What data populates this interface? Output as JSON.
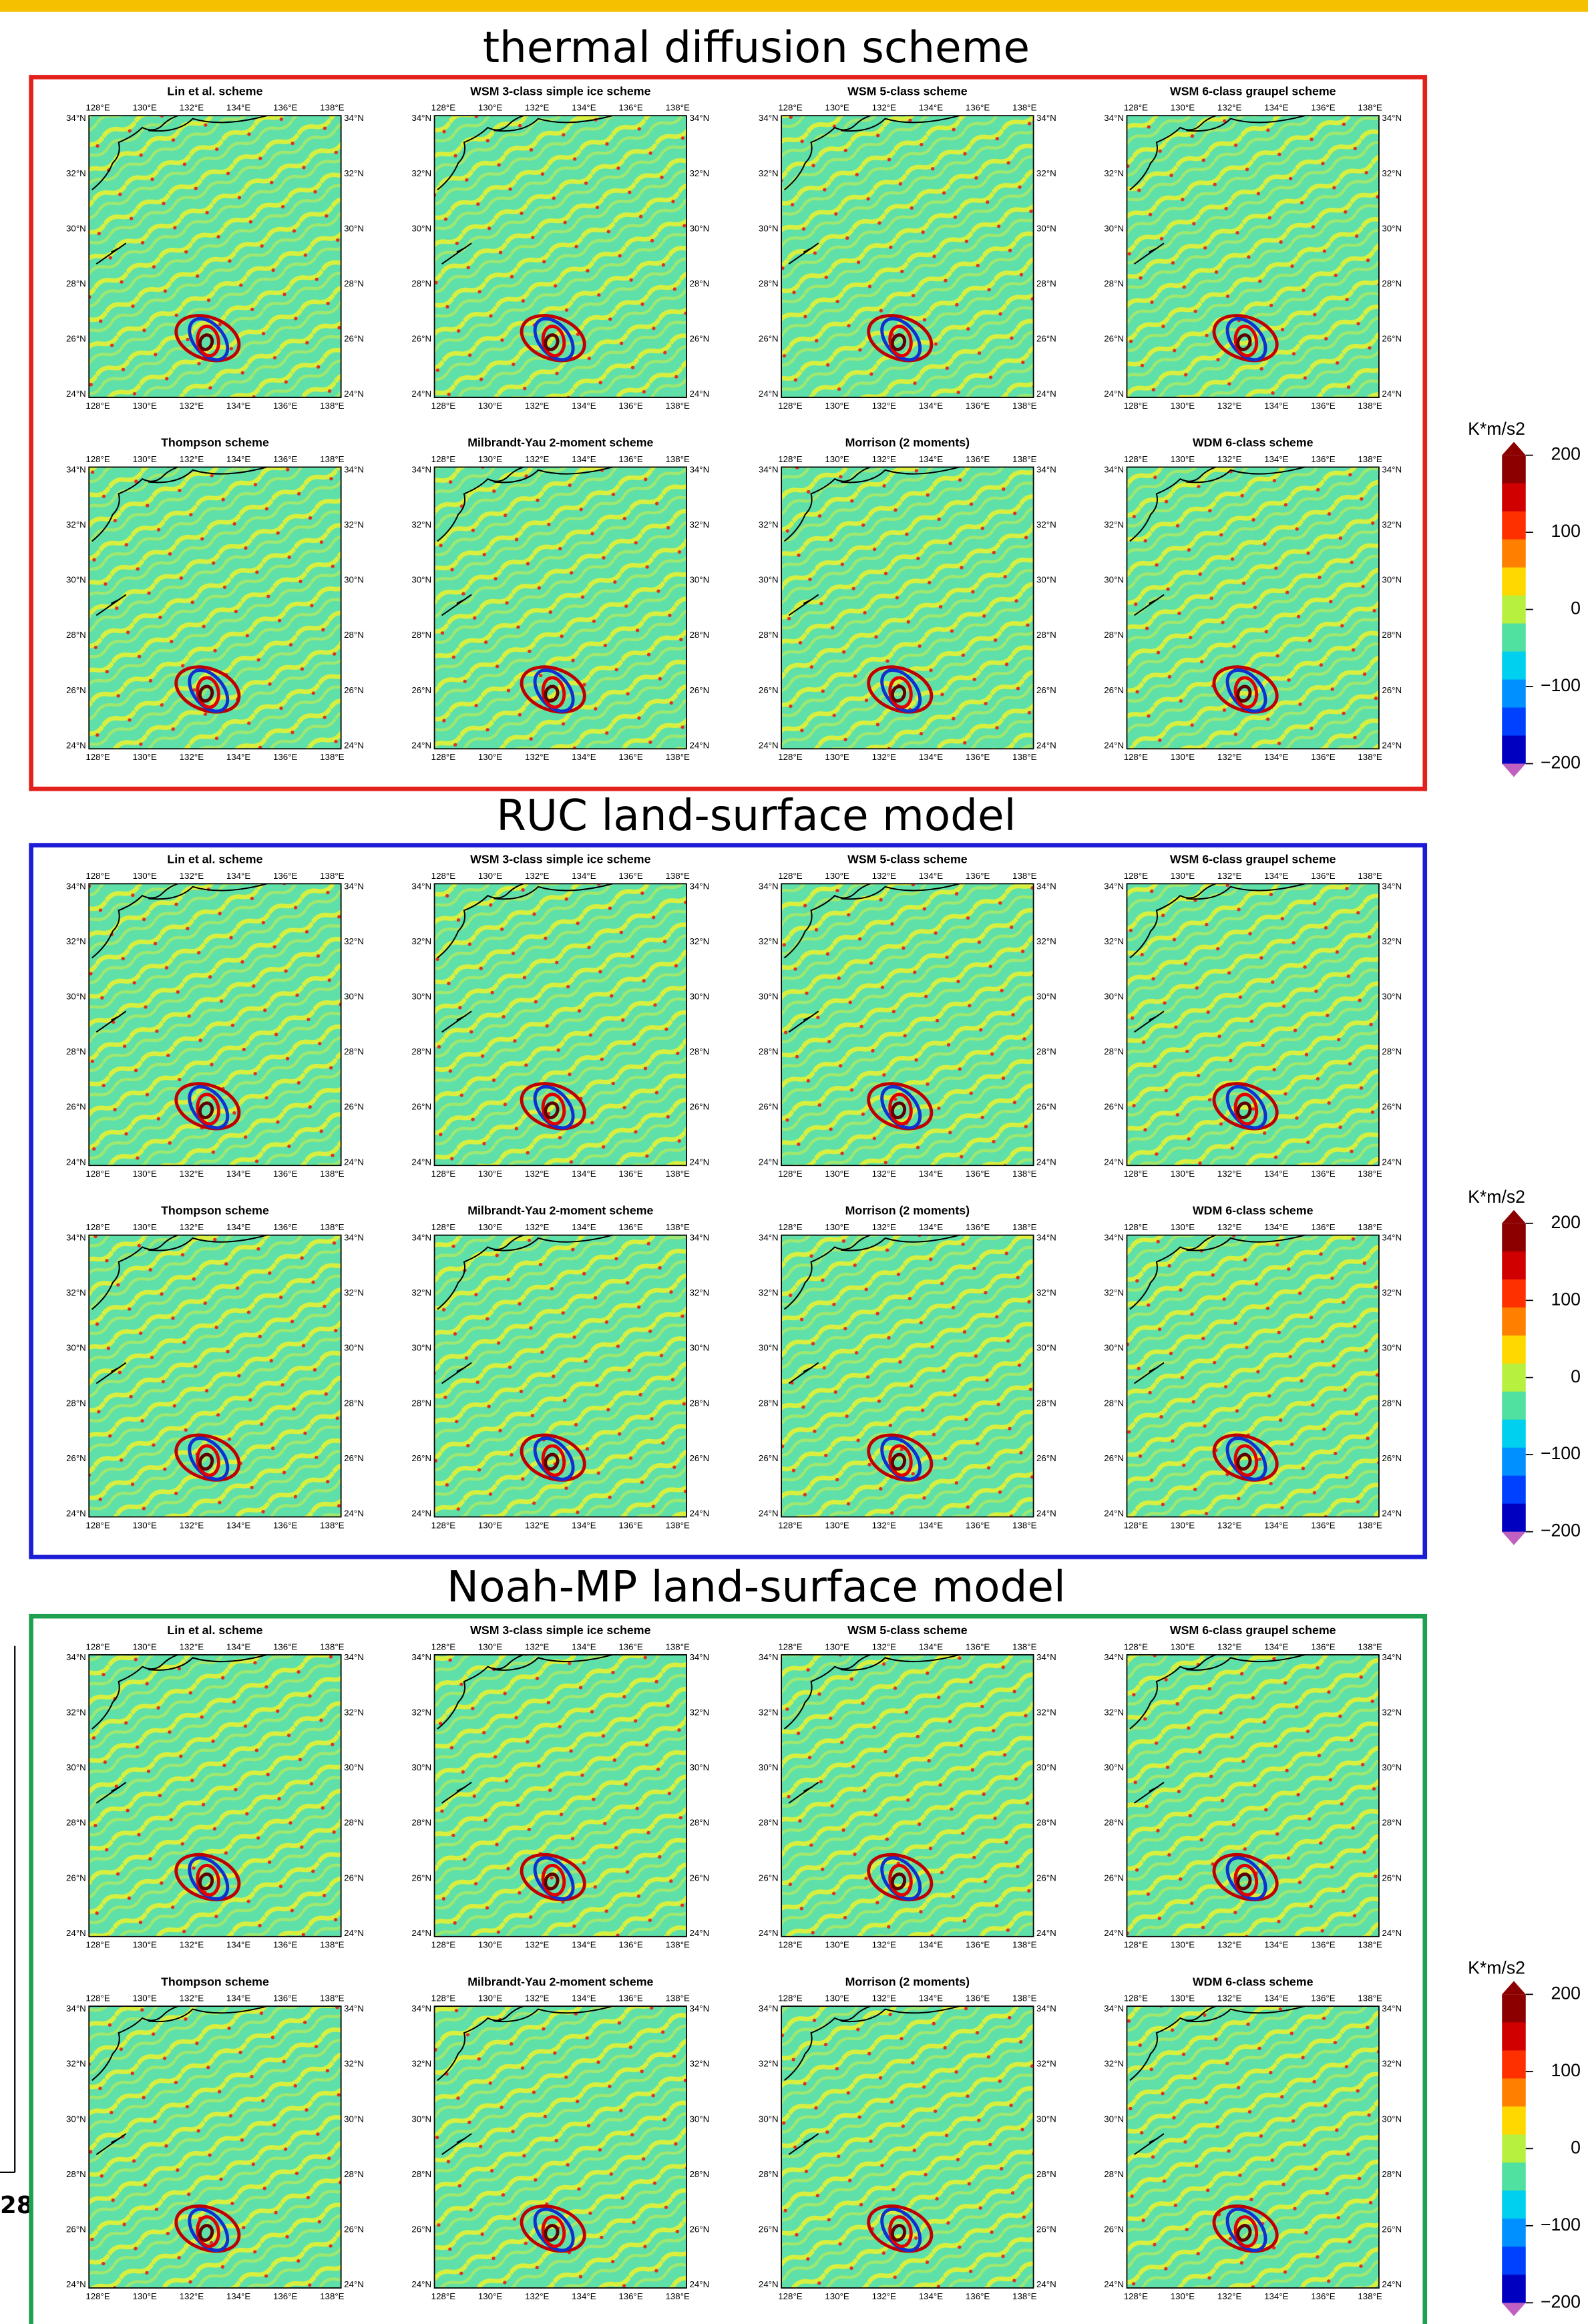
{
  "groups": [
    {
      "title": "thermal diffusion scheme",
      "color": "#e3201c"
    },
    {
      "title": "RUC land-surface model",
      "color": "#1c1cd6"
    },
    {
      "title": "Noah-MP land-surface model",
      "color": "#1fa050"
    }
  ],
  "panels": [
    "Lin et al. scheme",
    "WSM 3-class simple ice scheme",
    "WSM 5-class scheme",
    "WSM 6-class graupel scheme",
    "Thompson scheme",
    "Milbrandt-Yau 2-moment scheme",
    "Morrison (2 moments)",
    "WDM 6-class scheme"
  ],
  "lon_labels": [
    "128°E",
    "130°E",
    "132°E",
    "134°E",
    "136°E",
    "138°E"
  ],
  "lat_labels": [
    "34°N",
    "32°N",
    "30°N",
    "28°N",
    "26°N",
    "24°N"
  ],
  "colorbar": {
    "unit": "K*m/s2",
    "lim": [
      -200,
      200
    ],
    "ticks": [
      200,
      100,
      0,
      {
        "value": -100,
        "label": "−100"
      },
      {
        "value": -200,
        "label": "−200"
      }
    ],
    "colors": [
      "#8c0000",
      "#d00000",
      "#ff3000",
      "#ff8000",
      "#ffd800",
      "#b8f040",
      "#50e0a0",
      "#00d0f0",
      "#0090ff",
      "#0040ff",
      "#0000c0"
    ],
    "over_color": "#8c0000",
    "under_color": "#c060c0"
  },
  "edge_fragment": "28"
}
